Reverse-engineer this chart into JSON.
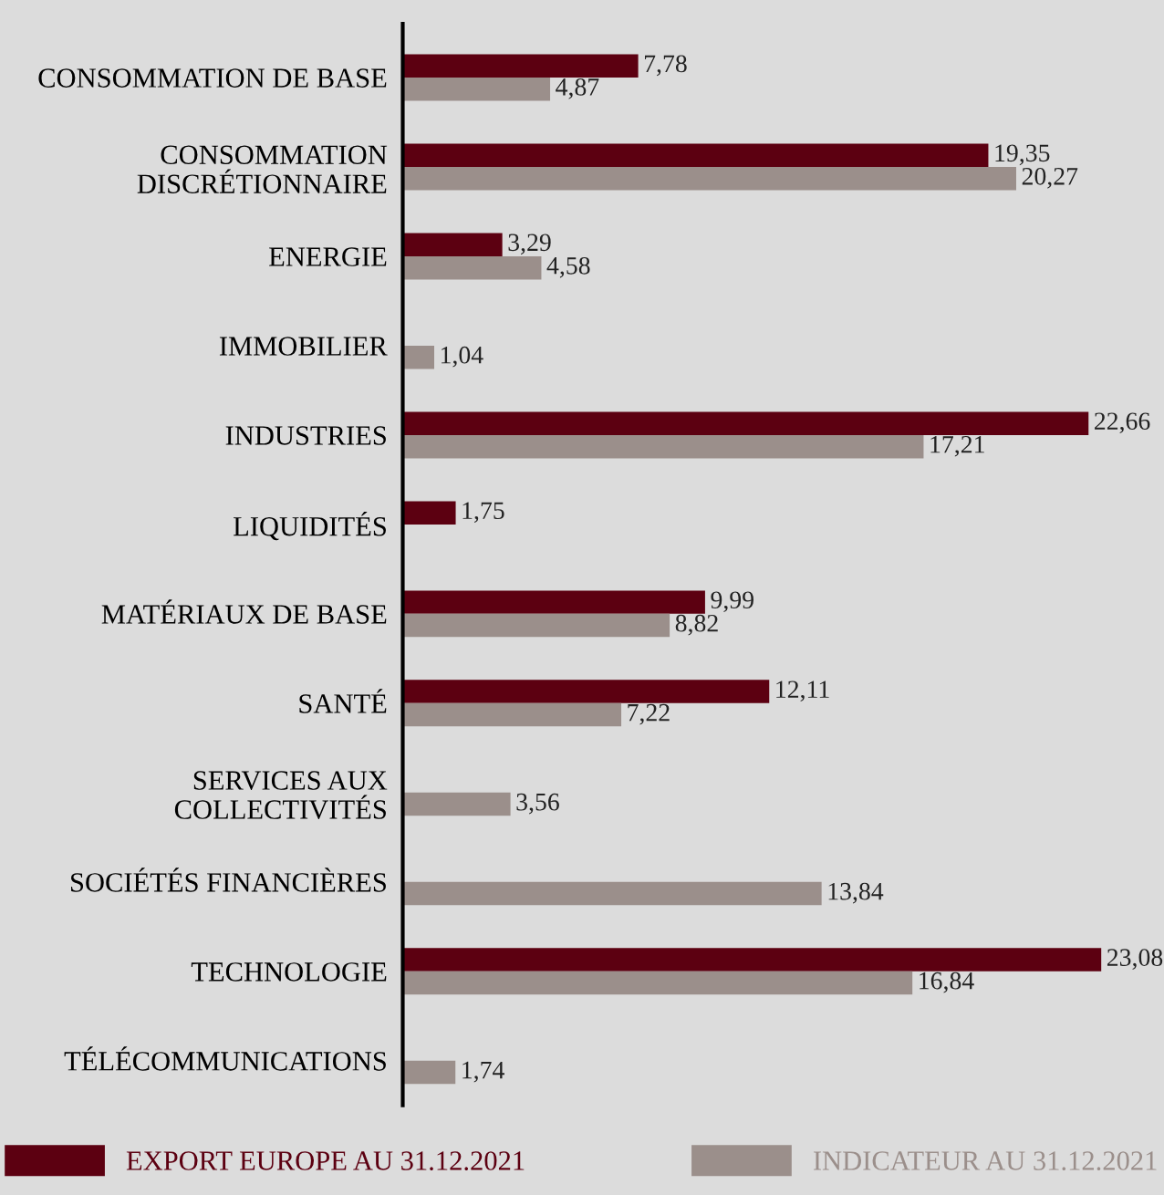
{
  "chart_data": {
    "type": "bar",
    "orientation": "horizontal",
    "categories": [
      "CONSOMMATION DE BASE",
      "CONSOMMATION\nDISCRÉTIONNAIRE",
      "ENERGIE",
      "IMMOBILIER",
      "INDUSTRIES",
      "LIQUIDITÉS",
      "MATÉRIAUX DE BASE",
      "SANTÉ",
      "SERVICES AUX\nCOLLECTIVITÉS",
      "SOCIÉTÉS FINANCIÈRES",
      "TECHNOLOGIE",
      "TÉLÉCOMMUNICATIONS"
    ],
    "series": [
      {
        "name": "EXPORT EUROPE AU 31.12.2021",
        "color": "#5c0011",
        "values": [
          7.78,
          19.35,
          3.29,
          null,
          22.66,
          1.75,
          9.99,
          12.11,
          null,
          null,
          23.08,
          null
        ],
        "value_labels": [
          "7,78",
          "19,35",
          "3,29",
          null,
          "22,66",
          "1,75",
          "9,99",
          "12,11",
          null,
          null,
          "23,08",
          null
        ]
      },
      {
        "name": "INDICATEUR AU 31.12.2021",
        "color": "#9b8f8b",
        "values": [
          4.87,
          20.27,
          4.58,
          1.04,
          17.21,
          null,
          8.82,
          7.22,
          3.56,
          13.84,
          16.84,
          1.74
        ],
        "value_labels": [
          "4,87",
          "20,27",
          "4,58",
          "1,04",
          "17,21",
          null,
          "8,82",
          "7,22",
          "3,56",
          "13,84",
          "16,84",
          "1,74"
        ]
      }
    ],
    "xlim": [
      0,
      25
    ],
    "tick_labels": "y",
    "grid": false,
    "legend": "bottom"
  }
}
